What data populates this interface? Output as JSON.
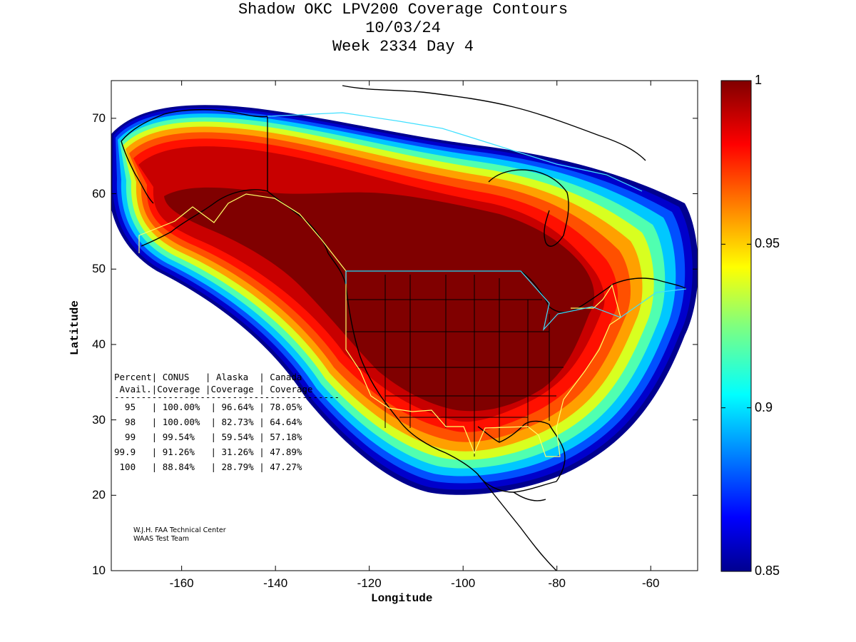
{
  "title": {
    "line1": "Shadow OKC LPV200 Coverage Contours",
    "line2": "10/03/24",
    "line3": "Week 2334 Day 4"
  },
  "axes": {
    "xlabel": "Longitude",
    "ylabel": "Latitude",
    "xlim": [
      -175,
      -50
    ],
    "ylim": [
      10,
      75
    ],
    "xticks": [
      "-160",
      "-140",
      "-120",
      "-100",
      "-80",
      "-60"
    ],
    "xtick_values": [
      -160,
      -140,
      -120,
      -100,
      -80,
      -60
    ],
    "yticks": [
      "10",
      "20",
      "30",
      "40",
      "50",
      "60",
      "70"
    ],
    "ytick_values": [
      10,
      20,
      30,
      40,
      50,
      60,
      70
    ]
  },
  "colorbar": {
    "min": 0.85,
    "max": 1,
    "colormap": "jet",
    "ticks": [
      "1",
      "0.95",
      "0.9",
      "0.85"
    ],
    "tick_values": [
      1,
      0.95,
      0.9,
      0.85
    ]
  },
  "stats_table": {
    "header1": "Percent| CONUS   | Alaska  | Canada",
    "header2": " Avail.|Coverage |Coverage | Coverage",
    "rule": "------------------------------------------",
    "rows": [
      "  95   | 100.00%  | 96.64% | 78.05%",
      "  98   | 100.00%  | 82.73% | 64.64%",
      "  99   | 99.54%   | 59.54% | 57.18%",
      "99.9   | 91.26%   | 31.26% | 47.89%",
      " 100   | 88.84%   | 28.79% | 47.27%"
    ]
  },
  "credit": {
    "line1": "W.J.H. FAA Technical Center",
    "line2": "WAAS Test Team"
  },
  "colors": {
    "jet_top": "#800000",
    "jet_red": "#ff0000",
    "jet_yellow": "#ffff00",
    "jet_cyan": "#00ffff",
    "jet_blue": "#0000ff",
    "jet_bottom": "#00008f",
    "region_border_yellow": "#ffff66",
    "region_border_cyan": "#40e0ff"
  }
}
